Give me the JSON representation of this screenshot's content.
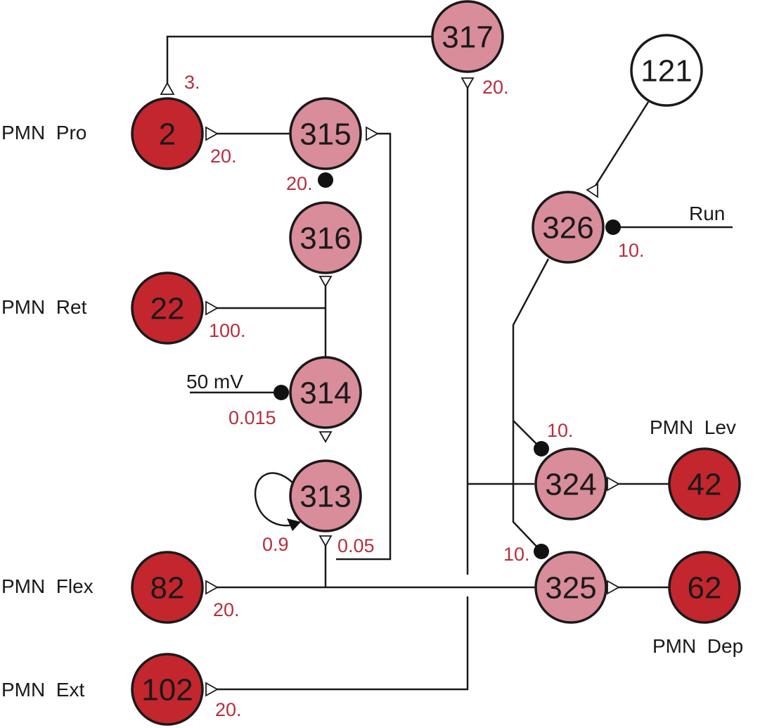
{
  "colors": {
    "motor": "#c4262e",
    "inter": "#d98c9a",
    "sensory": "#ffffff",
    "weight_text": "#b82d3e"
  },
  "neurons": {
    "n317": "317",
    "n121": "121",
    "n2": "2",
    "n315": "315",
    "n316": "316",
    "n326": "326",
    "n22": "22",
    "n314": "314",
    "n313": "313",
    "n324": "324",
    "n42": "42",
    "n82": "82",
    "n325": "325",
    "n62": "62",
    "n102": "102"
  },
  "labels": {
    "pmn_pro": "PMN  Pro",
    "pmn_ret": "PMN  Ret",
    "pmn_flex": "PMN  Flex",
    "pmn_ext": "PMN  Ext",
    "pmn_lev": "PMN  Lev",
    "pmn_dep": "PMN  Dep",
    "run": "Run",
    "input_50mv": "50 mV"
  },
  "weights": {
    "w317_to_2": "3.",
    "w317_out": "20.",
    "w2_to_315": "20.",
    "w315_316": "20.",
    "w326_run": "10.",
    "w22": "100.",
    "w314_input": "0.015",
    "w324": "10.",
    "w313_self": "0.9",
    "w313_out": "0.05",
    "w325": "10.",
    "w82": "20.",
    "w102": "20."
  }
}
